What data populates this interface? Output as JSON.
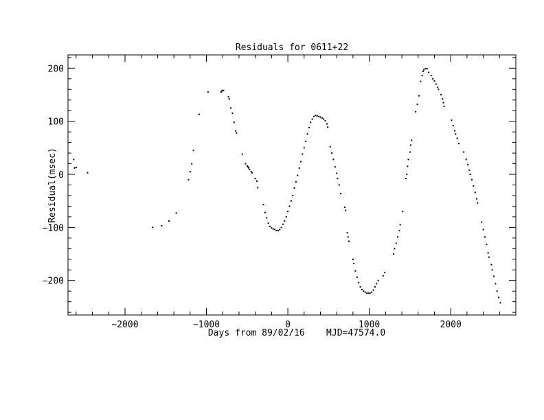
{
  "chart_data": {
    "type": "scatter",
    "title": "Residuals for 0611+22",
    "xlabel": "Days from 89/02/16    MJD=47574.0",
    "ylabel": "Residual(msec)",
    "xlim": [
      -2700,
      2800
    ],
    "ylim": [
      -265,
      225
    ],
    "xticks": [
      -2000,
      -1000,
      0,
      1000,
      2000
    ],
    "yticks": [
      -200,
      -100,
      0,
      100,
      200
    ],
    "xtick_labels": [
      "−2000",
      "−1000",
      "0",
      "1000",
      "2000"
    ],
    "ytick_labels": [
      "−200",
      "−100",
      "0",
      "100",
      "200"
    ],
    "marker_color": "#000000",
    "series": [
      {
        "points": [
          [
            -2630,
            28
          ],
          [
            -2620,
            12
          ],
          [
            -2600,
            13
          ],
          [
            -2460,
            3
          ],
          [
            -1660,
            -100
          ],
          [
            -1550,
            -97
          ],
          [
            -1460,
            -88
          ],
          [
            -1370,
            -73
          ],
          [
            -1220,
            -10
          ],
          [
            -1200,
            5
          ],
          [
            -1180,
            20
          ],
          [
            -1160,
            45
          ],
          [
            -1090,
            113
          ],
          [
            -980,
            155
          ],
          [
            -820,
            155
          ],
          [
            -810,
            157
          ],
          [
            -800,
            158
          ],
          [
            -790,
            158
          ],
          [
            -730,
            146
          ],
          [
            -720,
            142
          ],
          [
            -700,
            125
          ],
          [
            -680,
            115
          ],
          [
            -660,
            98
          ],
          [
            -640,
            82
          ],
          [
            -630,
            78
          ],
          [
            -560,
            38
          ],
          [
            -520,
            20
          ],
          [
            -500,
            16
          ],
          [
            -490,
            14
          ],
          [
            -480,
            12
          ],
          [
            -470,
            9
          ],
          [
            -450,
            5
          ],
          [
            -440,
            3
          ],
          [
            -400,
            -8
          ],
          [
            -380,
            -13
          ],
          [
            -370,
            -25
          ],
          [
            -300,
            -57
          ],
          [
            -280,
            -72
          ],
          [
            -260,
            -82
          ],
          [
            -240,
            -92
          ],
          [
            -220,
            -98
          ],
          [
            -200,
            -101
          ],
          [
            -180,
            -103
          ],
          [
            -160,
            -104
          ],
          [
            -140,
            -106
          ],
          [
            -120,
            -106
          ],
          [
            -100,
            -104
          ],
          [
            -80,
            -100
          ],
          [
            -60,
            -94
          ],
          [
            -40,
            -88
          ],
          [
            -20,
            -80
          ],
          [
            0,
            -70
          ],
          [
            20,
            -60
          ],
          [
            40,
            -50
          ],
          [
            60,
            -40
          ],
          [
            80,
            -26
          ],
          [
            100,
            -14
          ],
          [
            120,
            -2
          ],
          [
            140,
            12
          ],
          [
            160,
            24
          ],
          [
            180,
            38
          ],
          [
            200,
            50
          ],
          [
            220,
            62
          ],
          [
            240,
            76
          ],
          [
            260,
            88
          ],
          [
            280,
            98
          ],
          [
            300,
            104
          ],
          [
            320,
            109
          ],
          [
            340,
            111
          ],
          [
            360,
            110
          ],
          [
            380,
            109
          ],
          [
            400,
            108
          ],
          [
            420,
            106
          ],
          [
            440,
            104
          ],
          [
            460,
            101
          ],
          [
            480,
            95
          ],
          [
            490,
            89
          ],
          [
            520,
            52
          ],
          [
            540,
            40
          ],
          [
            560,
            28
          ],
          [
            580,
            14
          ],
          [
            600,
            2
          ],
          [
            610,
            -8
          ],
          [
            630,
            -20
          ],
          [
            650,
            -36
          ],
          [
            700,
            -62
          ],
          [
            710,
            -68
          ],
          [
            730,
            -110
          ],
          [
            740,
            -118
          ],
          [
            750,
            -126
          ],
          [
            800,
            -160
          ],
          [
            810,
            -168
          ],
          [
            830,
            -182
          ],
          [
            850,
            -194
          ],
          [
            870,
            -204
          ],
          [
            890,
            -212
          ],
          [
            910,
            -217
          ],
          [
            930,
            -220
          ],
          [
            950,
            -222
          ],
          [
            970,
            -224
          ],
          [
            990,
            -224
          ],
          [
            1010,
            -224
          ],
          [
            1030,
            -222
          ],
          [
            1050,
            -218
          ],
          [
            1070,
            -212
          ],
          [
            1090,
            -206
          ],
          [
            1110,
            -200
          ],
          [
            1170,
            -191
          ],
          [
            1190,
            -185
          ],
          [
            1300,
            -150
          ],
          [
            1310,
            -140
          ],
          [
            1330,
            -130
          ],
          [
            1350,
            -118
          ],
          [
            1370,
            -106
          ],
          [
            1380,
            -95
          ],
          [
            1410,
            -70
          ],
          [
            1450,
            -8
          ],
          [
            1460,
            0
          ],
          [
            1470,
            15
          ],
          [
            1480,
            28
          ],
          [
            1500,
            42
          ],
          [
            1510,
            55
          ],
          [
            1520,
            64
          ],
          [
            1570,
            118
          ],
          [
            1590,
            132
          ],
          [
            1610,
            148
          ],
          [
            1630,
            175
          ],
          [
            1650,
            186
          ],
          [
            1660,
            194
          ],
          [
            1670,
            197
          ],
          [
            1690,
            199
          ],
          [
            1710,
            199
          ],
          [
            1730,
            192
          ],
          [
            1760,
            186
          ],
          [
            1780,
            180
          ],
          [
            1800,
            176
          ],
          [
            1820,
            170
          ],
          [
            1840,
            164
          ],
          [
            1850,
            160
          ],
          [
            1880,
            150
          ],
          [
            1900,
            142
          ],
          [
            1910,
            135
          ],
          [
            1920,
            128
          ],
          [
            2010,
            102
          ],
          [
            2030,
            92
          ],
          [
            2050,
            82
          ],
          [
            2060,
            76
          ],
          [
            2080,
            68
          ],
          [
            2100,
            58
          ],
          [
            2160,
            42
          ],
          [
            2190,
            28
          ],
          [
            2210,
            18
          ],
          [
            2230,
            8
          ],
          [
            2240,
            0
          ],
          [
            2260,
            -10
          ],
          [
            2280,
            -22
          ],
          [
            2300,
            -34
          ],
          [
            2320,
            -46
          ],
          [
            2330,
            -54
          ],
          [
            2380,
            -90
          ],
          [
            2400,
            -104
          ],
          [
            2420,
            -118
          ],
          [
            2440,
            -132
          ],
          [
            2460,
            -148
          ],
          [
            2470,
            -156
          ],
          [
            2500,
            -170
          ],
          [
            2510,
            -180
          ],
          [
            2530,
            -192
          ],
          [
            2550,
            -206
          ],
          [
            2570,
            -220
          ],
          [
            2590,
            -232
          ],
          [
            2610,
            -242
          ]
        ]
      }
    ]
  }
}
